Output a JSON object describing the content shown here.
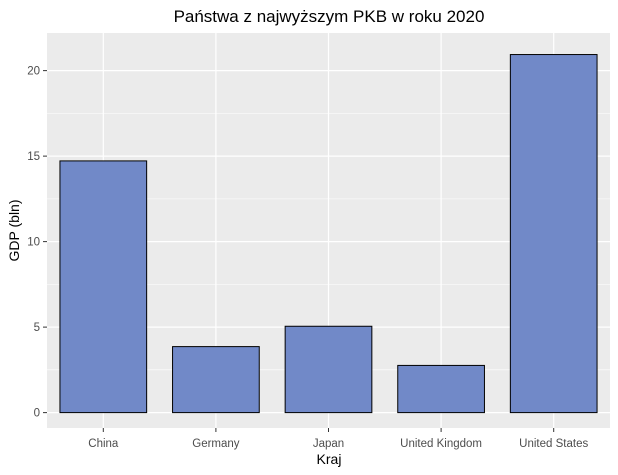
{
  "chart_data": {
    "type": "bar",
    "title": "Państwa z najwyższym PKB w roku 2020",
    "xlabel": "Kraj",
    "ylabel": "GDP (bln)",
    "categories": [
      "China",
      "Germany",
      "Japan",
      "United Kingdom",
      "United States"
    ],
    "values": [
      14.72,
      3.86,
      5.05,
      2.76,
      20.94
    ],
    "ylim": [
      -0.9,
      22.2
    ],
    "yticks": [
      0,
      5,
      10,
      15,
      20
    ],
    "grid": true,
    "legend": "none",
    "colors": {
      "bar_fill": "#7189c8",
      "bar_stroke": "#000000",
      "panel_background": "#ebebeb",
      "grid_major": "#ffffff",
      "tick_text": "#4d4d4d"
    }
  }
}
